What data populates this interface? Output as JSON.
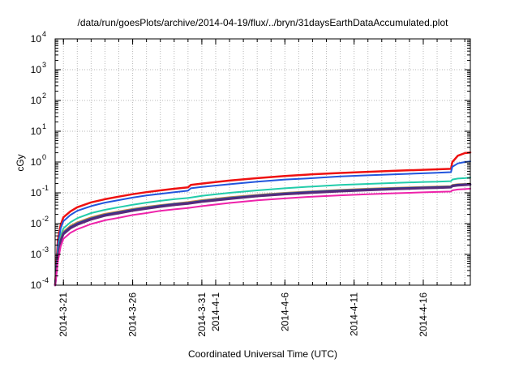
{
  "chart_data": {
    "type": "line",
    "title": "/data/run/goesPlots/archive/2014-04-19/flux/../bryn/31daysEarthDataAccumulated.plot",
    "xlabel": "Coordinated Universal Time (UTC)",
    "ylabel": "cGy",
    "y_scale": "log",
    "ylim": [
      0.0001,
      10000
    ],
    "xlim": [
      -0.6,
      29.4
    ],
    "x_origin_label": "2014-3-21",
    "grid": true,
    "legend": "none",
    "x_ticks": [
      {
        "x": 0,
        "label": "2014-3-21"
      },
      {
        "x": 5,
        "label": "2014-3-26"
      },
      {
        "x": 10,
        "label": "2014-3-31"
      },
      {
        "x": 11,
        "label": "2014-4-1"
      },
      {
        "x": 16,
        "label": "2014-4-6"
      },
      {
        "x": 21,
        "label": "2014-4-11"
      },
      {
        "x": 26,
        "label": "2014-4-16"
      }
    ],
    "y_ticks": [
      {
        "value": 0.0001,
        "base": "10",
        "exp": "-4"
      },
      {
        "value": 0.001,
        "base": "10",
        "exp": "-3"
      },
      {
        "value": 0.01,
        "base": "10",
        "exp": "-2"
      },
      {
        "value": 0.1,
        "base": "10",
        "exp": "-1"
      },
      {
        "value": 1,
        "base": "10",
        "exp": "0"
      },
      {
        "value": 10,
        "base": "10",
        "exp": "1"
      },
      {
        "value": 100,
        "base": "10",
        "exp": "2"
      },
      {
        "value": 1000,
        "base": "10",
        "exp": "3"
      },
      {
        "value": 10000,
        "base": "10",
        "exp": "4"
      }
    ],
    "series": [
      {
        "color": "#ee1111",
        "width": 2.5,
        "x": [
          -0.6,
          -0.4,
          -0.2,
          0,
          0.5,
          1,
          2,
          3,
          4,
          5,
          6,
          7,
          8,
          9,
          9.2,
          10,
          12,
          14,
          16,
          18,
          20,
          22,
          24,
          26,
          27,
          28,
          28.1,
          28.5,
          29,
          29.4
        ],
        "y": [
          0.0001,
          0.003,
          0.009,
          0.016,
          0.025,
          0.034,
          0.049,
          0.062,
          0.075,
          0.09,
          0.105,
          0.12,
          0.135,
          0.15,
          0.18,
          0.2,
          0.25,
          0.3,
          0.35,
          0.4,
          0.44,
          0.48,
          0.52,
          0.56,
          0.58,
          0.6,
          1.0,
          1.6,
          1.95,
          2.05
        ]
      },
      {
        "color": "#2255dd",
        "width": 2,
        "x": [
          -0.6,
          -0.4,
          -0.2,
          0,
          0.5,
          1,
          2,
          3,
          4,
          5,
          6,
          7,
          8,
          9,
          9.2,
          10,
          12,
          14,
          16,
          18,
          20,
          22,
          24,
          26,
          27,
          28,
          28.1,
          28.5,
          29,
          29.4
        ],
        "y": [
          0.0001,
          0.002,
          0.007,
          0.012,
          0.019,
          0.026,
          0.037,
          0.048,
          0.058,
          0.07,
          0.082,
          0.093,
          0.105,
          0.117,
          0.14,
          0.155,
          0.19,
          0.23,
          0.27,
          0.3,
          0.34,
          0.37,
          0.4,
          0.43,
          0.45,
          0.47,
          0.7,
          0.9,
          1.0,
          1.05
        ]
      },
      {
        "color": "#22ccaa",
        "width": 2,
        "x": [
          -0.6,
          -0.4,
          -0.2,
          0,
          0.5,
          1,
          2,
          3,
          4,
          5,
          6,
          7,
          8,
          9,
          10,
          12,
          14,
          16,
          18,
          20,
          22,
          24,
          26,
          27,
          28,
          28.1,
          28.5,
          29,
          29.4
        ],
        "y": [
          0.0001,
          0.0012,
          0.004,
          0.007,
          0.011,
          0.015,
          0.022,
          0.028,
          0.034,
          0.041,
          0.048,
          0.055,
          0.062,
          0.068,
          0.08,
          0.1,
          0.12,
          0.14,
          0.16,
          0.18,
          0.195,
          0.21,
          0.225,
          0.23,
          0.24,
          0.27,
          0.29,
          0.3,
          0.31
        ]
      },
      {
        "color": "#dd8833",
        "width": 2,
        "x": [
          -0.6,
          -0.4,
          -0.2,
          0,
          0.5,
          1,
          2,
          3,
          4,
          5,
          6,
          7,
          8,
          9,
          10,
          12,
          14,
          16,
          18,
          20,
          22,
          24,
          26,
          27,
          28,
          28.1,
          28.5,
          29,
          29.4
        ],
        "y": [
          0.0001,
          0.001,
          0.0032,
          0.0055,
          0.0085,
          0.011,
          0.016,
          0.021,
          0.025,
          0.03,
          0.035,
          0.04,
          0.045,
          0.05,
          0.058,
          0.072,
          0.086,
          0.1,
          0.112,
          0.124,
          0.136,
          0.146,
          0.156,
          0.16,
          0.165,
          0.18,
          0.19,
          0.195,
          0.2
        ]
      },
      {
        "color": "#7a7a7a",
        "width": 2,
        "x": [
          -0.6,
          -0.4,
          -0.2,
          0,
          0.5,
          1,
          2,
          3,
          4,
          5,
          6,
          7,
          8,
          9,
          10,
          12,
          14,
          16,
          18,
          20,
          22,
          24,
          26,
          27,
          28,
          28.1,
          28.5,
          29,
          29.4
        ],
        "y": [
          0.0001,
          0.001,
          0.003,
          0.0052,
          0.008,
          0.0105,
          0.0152,
          0.02,
          0.024,
          0.029,
          0.034,
          0.039,
          0.044,
          0.048,
          0.056,
          0.07,
          0.084,
          0.098,
          0.11,
          0.122,
          0.133,
          0.143,
          0.152,
          0.156,
          0.161,
          0.176,
          0.185,
          0.19,
          0.195
        ]
      },
      {
        "color": "#223399",
        "width": 2.5,
        "x": [
          -0.6,
          -0.4,
          -0.2,
          0,
          0.5,
          1,
          2,
          3,
          4,
          5,
          6,
          7,
          8,
          9,
          10,
          12,
          14,
          16,
          18,
          20,
          22,
          24,
          26,
          27,
          28,
          28.1,
          28.5,
          29,
          29.4
        ],
        "y": [
          0.0001,
          0.0009,
          0.0028,
          0.0048,
          0.0075,
          0.0098,
          0.0143,
          0.019,
          0.0228,
          0.0275,
          0.032,
          0.037,
          0.042,
          0.046,
          0.053,
          0.066,
          0.08,
          0.093,
          0.105,
          0.116,
          0.127,
          0.137,
          0.146,
          0.15,
          0.155,
          0.17,
          0.18,
          0.185,
          0.19
        ]
      },
      {
        "color": "#5a2a7a",
        "width": 2.5,
        "x": [
          -0.6,
          -0.4,
          -0.2,
          0,
          0.5,
          1,
          2,
          3,
          4,
          5,
          6,
          7,
          8,
          9,
          10,
          12,
          14,
          16,
          18,
          20,
          22,
          24,
          26,
          27,
          28,
          28.1,
          28.5,
          29,
          29.4
        ],
        "y": [
          0.0001,
          0.00085,
          0.0026,
          0.0045,
          0.007,
          0.0092,
          0.0135,
          0.018,
          0.0215,
          0.026,
          0.0305,
          0.035,
          0.04,
          0.044,
          0.051,
          0.063,
          0.077,
          0.089,
          0.1,
          0.111,
          0.121,
          0.131,
          0.14,
          0.144,
          0.149,
          0.163,
          0.173,
          0.178,
          0.183
        ]
      },
      {
        "color": "#ee22aa",
        "width": 2,
        "x": [
          -0.6,
          -0.4,
          -0.2,
          0,
          0.5,
          1,
          2,
          3,
          4,
          5,
          6,
          7,
          8,
          9,
          10,
          12,
          14,
          16,
          18,
          20,
          22,
          24,
          26,
          27,
          28,
          28.1,
          28.5,
          29,
          29.4
        ],
        "y": [
          0.0001,
          0.0006,
          0.0018,
          0.0032,
          0.005,
          0.0066,
          0.0097,
          0.0128,
          0.0155,
          0.019,
          0.022,
          0.026,
          0.029,
          0.032,
          0.037,
          0.047,
          0.057,
          0.066,
          0.075,
          0.083,
          0.09,
          0.097,
          0.104,
          0.107,
          0.11,
          0.12,
          0.128,
          0.132,
          0.136
        ]
      }
    ]
  }
}
